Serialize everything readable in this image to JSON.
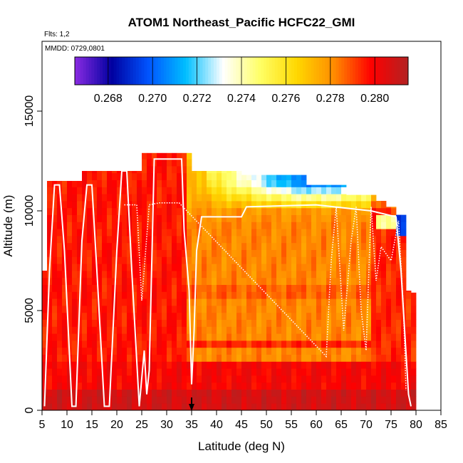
{
  "chart_data": {
    "type": "heatmap",
    "title": "ATOM1 Northeast_Pacific HCFC22_GMI",
    "annotations": [
      "Flts: 1,2",
      "MMDD: 0729,0801"
    ],
    "xlabel": "Latitude (deg N)",
    "ylabel": "Altitude (m)",
    "xlim": [
      5,
      85
    ],
    "ylim": [
      0,
      18500
    ],
    "x_ticks": [
      "5",
      "10",
      "15",
      "20",
      "25",
      "30",
      "35",
      "40",
      "45",
      "50",
      "55",
      "60",
      "65",
      "70",
      "75",
      "80",
      "85"
    ],
    "y_ticks": [
      "0",
      "5000",
      "10000",
      "15000"
    ],
    "colorbar": {
      "min": 0.2665,
      "max": 0.2815,
      "tick_values": [
        0.268,
        0.27,
        0.272,
        0.274,
        0.276,
        0.278,
        0.28
      ],
      "tick_labels": [
        "0.268",
        "0.270",
        "0.272",
        "0.274",
        "0.276",
        "0.278",
        "0.280"
      ],
      "colors": [
        "#8a2be2",
        "#0000a0",
        "#0055ff",
        "#00bfff",
        "#ffffff",
        "#ffff66",
        "#ffd700",
        "#ff8c00",
        "#ff0000",
        "#b22222"
      ]
    },
    "marker_latitude": 35,
    "flight_track": [
      [
        5.5,
        200
      ],
      [
        6.5,
        7000
      ],
      [
        7.5,
        11300
      ],
      [
        8.5,
        11300
      ],
      [
        9.5,
        8000
      ],
      [
        11.0,
        200
      ],
      [
        11.8,
        200
      ],
      [
        13.0,
        8500
      ],
      [
        14.0,
        11300
      ],
      [
        15.0,
        11300
      ],
      [
        16.0,
        7000
      ],
      [
        17.5,
        200
      ],
      [
        18.5,
        200
      ],
      [
        20.0,
        8000
      ],
      [
        21.0,
        12000
      ],
      [
        22.0,
        12000
      ],
      [
        23.0,
        7000
      ],
      [
        24.5,
        200
      ],
      [
        25.5,
        3000
      ],
      [
        26.0,
        800
      ],
      [
        26.5,
        2000
      ],
      [
        27.5,
        12600
      ],
      [
        33.0,
        12600
      ],
      [
        33.5,
        9000
      ],
      [
        34.5,
        6000
      ],
      [
        35.0,
        1300
      ],
      [
        35.5,
        4000
      ],
      [
        36.0,
        8000
      ],
      [
        37.0,
        9700
      ],
      [
        45.0,
        9700
      ],
      [
        46.0,
        10200
      ],
      [
        60.0,
        10300
      ],
      [
        71.0,
        10000
      ],
      [
        76.0,
        9700
      ],
      [
        77.0,
        7000
      ],
      [
        78.5,
        800
      ],
      [
        79.0,
        200
      ]
    ],
    "flight_track_dotted": [
      [
        21.5,
        10300
      ],
      [
        24.0,
        10300
      ],
      [
        25.0,
        5500
      ],
      [
        26.5,
        10300
      ],
      [
        28.5,
        10400
      ],
      [
        32.5,
        10400
      ],
      [
        62.0,
        2700
      ],
      [
        63.0,
        7500
      ],
      [
        64.0,
        10200
      ],
      [
        65.5,
        4000
      ],
      [
        67.0,
        8500
      ],
      [
        68.0,
        10200
      ],
      [
        69.0,
        5000
      ],
      [
        70.0,
        3000
      ],
      [
        71.0,
        10200
      ],
      [
        72.0,
        6500
      ],
      [
        73.0,
        8200
      ],
      [
        75.0,
        7500
      ],
      [
        76.5,
        9500
      ],
      [
        77.5,
        5000
      ],
      [
        78.0,
        1000
      ]
    ]
  }
}
